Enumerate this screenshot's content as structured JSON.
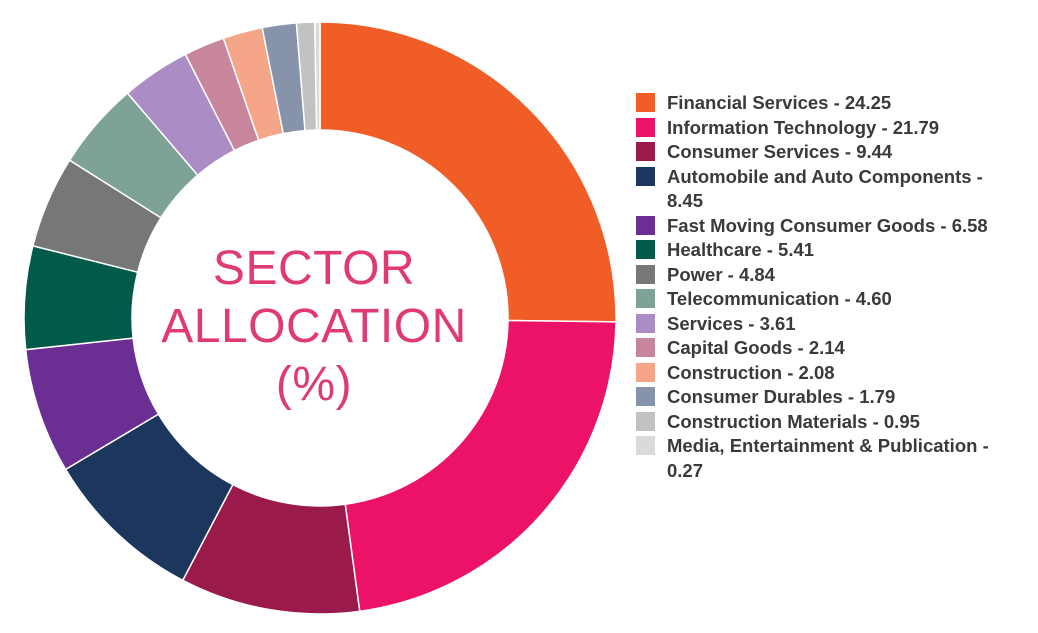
{
  "center_title": {
    "line1": "SECTOR",
    "line2": "ALLOCATION",
    "line3": "(%)"
  },
  "chart_data": {
    "type": "pie",
    "style": "donut",
    "start_angle": "12 o'clock",
    "direction": "clockwise",
    "legend_placement": "right",
    "slices": [
      {
        "label": "Financial Services - 24.25",
        "name": "Financial Services",
        "value": 24.25,
        "color": "#f15d27"
      },
      {
        "label": "Information Technology - 21.79",
        "name": "Information Technology",
        "value": 21.79,
        "color": "#ec1268"
      },
      {
        "label": "Consumer Services - 9.44",
        "name": "Consumer Services",
        "value": 9.44,
        "color": "#9a1a4c"
      },
      {
        "label": "Automobile and Auto Components - 8.45",
        "name": "Automobile and Auto Components",
        "value": 8.45,
        "color": "#1c365e"
      },
      {
        "label": "Fast Moving Consumer Goods - 6.58",
        "name": "Fast Moving Consumer Goods",
        "value": 6.58,
        "color": "#6b2f93"
      },
      {
        "label": "Healthcare - 5.41",
        "name": "Healthcare",
        "value": 5.41,
        "color": "#025a4a"
      },
      {
        "label": "Power - 4.84",
        "name": "Power",
        "value": 4.84,
        "color": "#777778"
      },
      {
        "label": "Telecommunication - 4.60",
        "name": "Telecommunication",
        "value": 4.6,
        "color": "#7ea296"
      },
      {
        "label": "Services - 3.61",
        "name": "Services",
        "value": 3.61,
        "color": "#ab8cc4"
      },
      {
        "label": "Capital Goods - 2.14",
        "name": "Capital Goods",
        "value": 2.14,
        "color": "#c7869c"
      },
      {
        "label": "Construction - 2.08",
        "name": "Construction",
        "value": 2.08,
        "color": "#f6a688"
      },
      {
        "label": "Consumer Durables - 1.79",
        "name": "Consumer Durables",
        "value": 1.79,
        "color": "#8793ab"
      },
      {
        "label": "Construction Materials - 0.95",
        "name": "Construction Materials",
        "value": 0.95,
        "color": "#c2c2c2"
      },
      {
        "label": "Media, Entertainment & Publication - 0.27",
        "name": "Media, Entertainment & Publication",
        "value": 0.27,
        "color": "#dadada"
      }
    ]
  }
}
